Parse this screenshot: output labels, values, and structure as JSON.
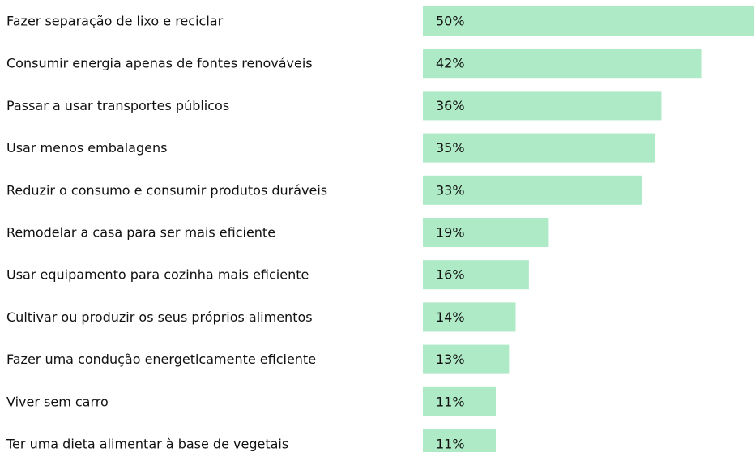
{
  "chart_data": {
    "type": "bar",
    "orientation": "horizontal",
    "color": "#aeeac6",
    "categories": [
      "Fazer separação de lixo e reciclar",
      "Consumir energia apenas de fontes renováveis",
      "Passar a usar transportes públicos",
      "Usar menos embalagens",
      "Reduzir o consumo e consumir produtos duráveis",
      "Remodelar a casa para ser mais eficiente",
      "Usar equipamento para cozinha mais eficiente",
      "Cultivar ou produzir os seus próprios alimentos",
      "Fazer uma condução energeticamente eficiente",
      "Viver sem carro",
      "Ter uma dieta alimentar à base de vegetais"
    ],
    "values": [
      50,
      42,
      36,
      35,
      33,
      19,
      16,
      14,
      13,
      11,
      11
    ],
    "value_labels": [
      "50%",
      "42%",
      "36%",
      "35%",
      "33%",
      "19%",
      "16%",
      "14%",
      "13%",
      "11%",
      "11%"
    ]
  }
}
